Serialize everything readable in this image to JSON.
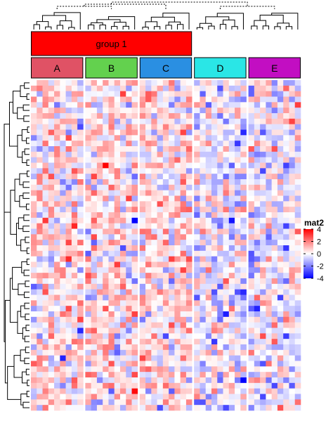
{
  "chart_data": {
    "type": "heatmap",
    "title": "",
    "column_groups": [
      {
        "name": "A",
        "color": "#E05265",
        "n_columns": 9
      },
      {
        "name": "B",
        "color": "#63D14E",
        "n_columns": 9
      },
      {
        "name": "C",
        "color": "#2A8FE2",
        "n_columns": 9
      },
      {
        "name": "D",
        "color": "#2AE6E6",
        "n_columns": 9
      },
      {
        "name": "E",
        "color": "#C20EC2",
        "n_columns": 9
      }
    ],
    "top_annotation": {
      "label": "group 1",
      "color": "#FF0000",
      "spans": [
        "A",
        "B",
        "C"
      ]
    },
    "n_rows": 60,
    "row_dendrogram": true,
    "column_dendrogram": true,
    "legend": {
      "title": "mat2",
      "ticks": [
        4,
        2,
        0,
        -2,
        -4
      ],
      "tick_labels": [
        "4",
        "2",
        "0",
        "-2",
        "-4"
      ],
      "colors": {
        "low": "#0000FF",
        "mid": "#FFFFFF",
        "high": "#FF0000"
      },
      "range": [
        -4,
        4
      ],
      "placement": "right"
    }
  }
}
